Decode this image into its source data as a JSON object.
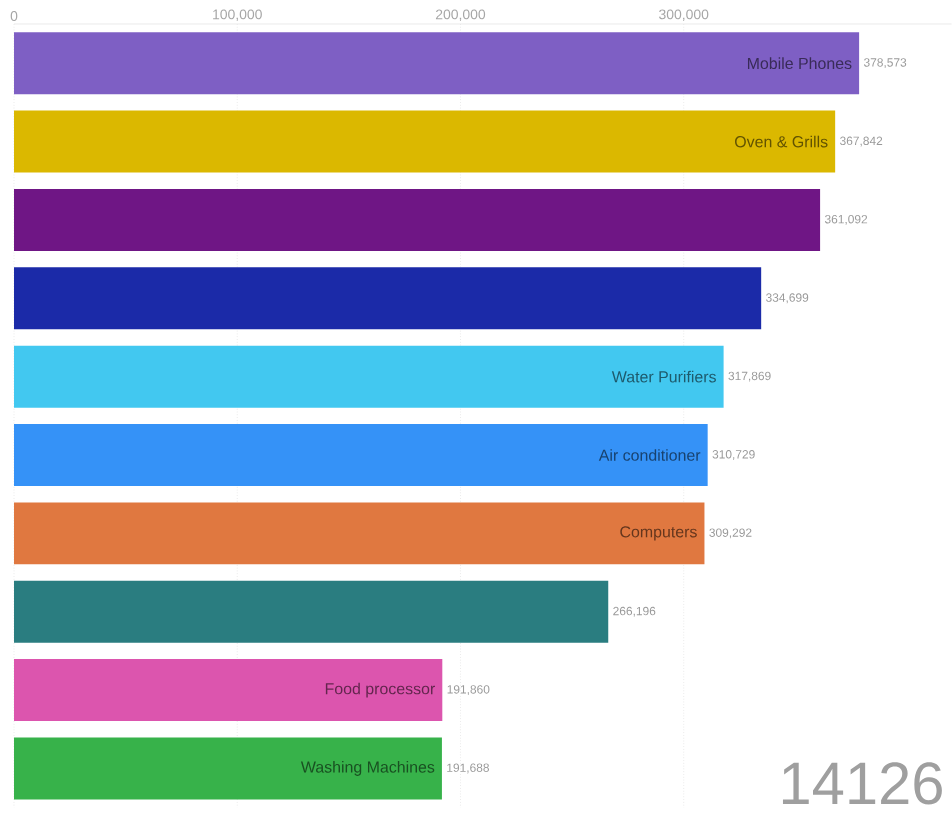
{
  "chart_data": {
    "type": "bar",
    "orientation": "horizontal",
    "categories": [
      "Mobile Phones",
      "Oven & Grills",
      null,
      null,
      "Water Purifiers",
      "Air conditioner",
      "Computers",
      null,
      "Food processor",
      "Washing Machines"
    ],
    "values": [
      378573,
      367842,
      361092,
      334699,
      317869,
      310729,
      309292,
      266196,
      191860,
      191688
    ],
    "value_labels": [
      "378,573",
      "367,842",
      "361,092",
      "334,699",
      "317,869",
      "310,729",
      "309,292",
      "266,196",
      "191,860",
      "191,688"
    ],
    "colors": [
      "#7e5fc4",
      "#dbb800",
      "#6f1685",
      "#1b2aa8",
      "#42c8f0",
      "#3592f7",
      "#e07840",
      "#2a7d80",
      "#dc55ae",
      "#37b24a"
    ],
    "xlim": [
      0,
      420000
    ],
    "xticks": [
      {
        "value": 0,
        "label": "0"
      },
      {
        "value": 100000,
        "label": "100,000"
      },
      {
        "value": 200000,
        "label": "200,000"
      },
      {
        "value": 300000,
        "label": "300,000"
      }
    ],
    "grid": "x",
    "annotations": [
      "14126"
    ]
  }
}
